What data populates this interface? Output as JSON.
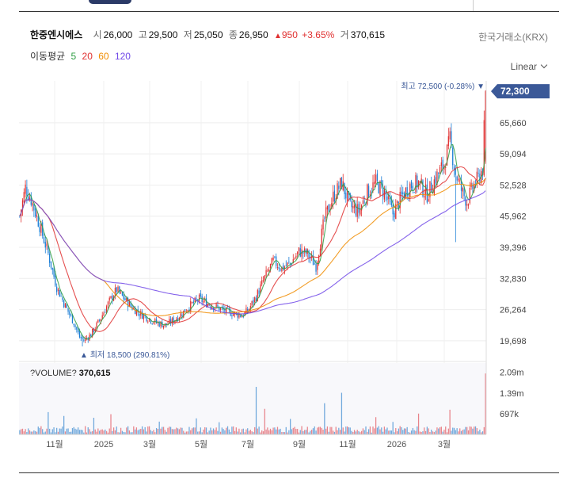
{
  "header": {
    "name": "한중엔시에스",
    "open_label": "시",
    "open": "26,000",
    "high_label": "고",
    "high": "29,500",
    "low_label": "저",
    "low": "25,050",
    "close_label": "종",
    "close": "26,950",
    "change_arrow": "▲",
    "change": "950",
    "change_pct": "+3.65%",
    "volume_label": "거",
    "volume": "370,615",
    "exchange": "한국거래소(KRX)"
  },
  "ma": {
    "label": "이동평균",
    "periods": [
      {
        "value": "5",
        "color": "#2f9e44"
      },
      {
        "value": "20",
        "color": "#e03131"
      },
      {
        "value": "60",
        "color": "#f08c00"
      },
      {
        "value": "120",
        "color": "#7048e8"
      }
    ]
  },
  "scale": {
    "label": "Linear"
  },
  "colors": {
    "up": "#e03131",
    "down": "#1c7ed6",
    "accent": "#3b5998"
  },
  "chart_data": {
    "type": "candlestick",
    "title": "",
    "x_ticks": [
      "11월",
      "2025",
      "3월",
      "5월",
      "7월",
      "9월",
      "11월",
      "2026",
      "3월"
    ],
    "y_ticks": [
      72300,
      65660,
      59094,
      52528,
      45962,
      39396,
      32830,
      26264,
      19698
    ],
    "y_tick_labels": [
      "72,300",
      "65,660",
      "59,094",
      "52,528",
      "45,962",
      "39,396",
      "32,830",
      "26,264",
      "19,698"
    ],
    "ylim": [
      17000,
      74500
    ],
    "current_price_label": "72,300",
    "annotations": {
      "high": {
        "label": "최고 72,500 (-0.28%) ▼",
        "value": 72500
      },
      "low": {
        "label": "▲ 최저 18,500 (290.81%)",
        "value": 18500
      }
    },
    "price_keypoints": [
      [
        0,
        46000
      ],
      [
        4,
        52000
      ],
      [
        8,
        49500
      ],
      [
        14,
        44000
      ],
      [
        20,
        38000
      ],
      [
        26,
        31000
      ],
      [
        32,
        27000
      ],
      [
        38,
        23500
      ],
      [
        42,
        20500
      ],
      [
        45,
        19800
      ],
      [
        50,
        21000
      ],
      [
        56,
        24000
      ],
      [
        62,
        27500
      ],
      [
        68,
        30500
      ],
      [
        72,
        29000
      ],
      [
        78,
        27000
      ],
      [
        84,
        25500
      ],
      [
        90,
        24500
      ],
      [
        96,
        23500
      ],
      [
        102,
        23000
      ],
      [
        108,
        24000
      ],
      [
        114,
        25500
      ],
      [
        120,
        27200
      ],
      [
        126,
        28500
      ],
      [
        132,
        27500
      ],
      [
        138,
        26800
      ],
      [
        144,
        26000
      ],
      [
        150,
        25500
      ],
      [
        156,
        25000
      ],
      [
        160,
        26000
      ],
      [
        166,
        29000
      ],
      [
        172,
        33000
      ],
      [
        178,
        36500
      ],
      [
        184,
        35000
      ],
      [
        190,
        36000
      ],
      [
        196,
        38500
      ],
      [
        202,
        38000
      ],
      [
        208,
        35500
      ],
      [
        214,
        45500
      ],
      [
        220,
        50000
      ],
      [
        226,
        53000
      ],
      [
        232,
        48000
      ],
      [
        238,
        47000
      ],
      [
        244,
        51000
      ],
      [
        250,
        53000
      ],
      [
        256,
        51000
      ],
      [
        262,
        46500
      ],
      [
        268,
        50000
      ],
      [
        274,
        52500
      ],
      [
        280,
        53000
      ],
      [
        286,
        50500
      ],
      [
        292,
        54000
      ],
      [
        298,
        57000
      ],
      [
        302,
        62000
      ],
      [
        306,
        55000
      ],
      [
        310,
        51500
      ],
      [
        314,
        49000
      ],
      [
        318,
        52000
      ],
      [
        322,
        54000
      ],
      [
        325,
        56000
      ],
      [
        327,
        72300
      ]
    ],
    "volume": {
      "label": "?VOLUME?",
      "value": "370,615",
      "y_tick_labels": [
        "2.09m",
        "1.39m",
        "697k"
      ],
      "y_ticks": [
        2090000,
        1390000,
        697000
      ],
      "ylim": [
        0,
        2400000
      ],
      "spikes": [
        [
          20,
          750000
        ],
        [
          31,
          620000
        ],
        [
          52,
          560000
        ],
        [
          64,
          680000
        ],
        [
          98,
          430000
        ],
        [
          124,
          540000
        ],
        [
          140,
          410000
        ],
        [
          166,
          1600000
        ],
        [
          172,
          860000
        ],
        [
          190,
          520000
        ],
        [
          214,
          1050000
        ],
        [
          226,
          1400000
        ],
        [
          250,
          580000
        ],
        [
          262,
          420000
        ],
        [
          280,
          700000
        ],
        [
          302,
          830000
        ],
        [
          327,
          2050000
        ]
      ]
    }
  }
}
